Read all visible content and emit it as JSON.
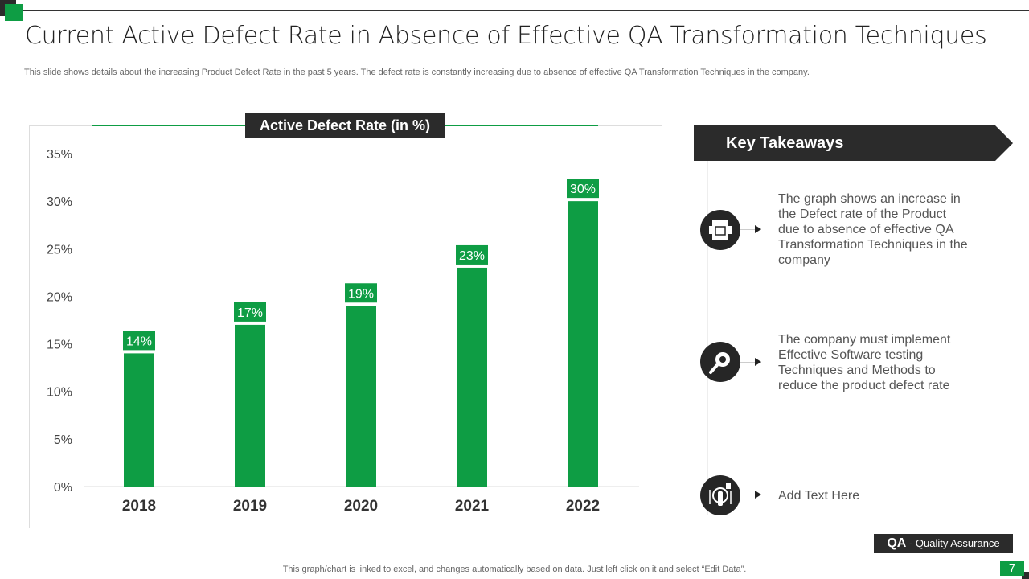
{
  "header": {
    "title": "Current Active Defect Rate in Absence of Effective QA Transformation Techniques",
    "subtitle": "This slide shows details about the increasing Product Defect Rate in the past 5 years. The defect rate is constantly increasing due to absence of effective QA Transformation Techniques in the company."
  },
  "colors": {
    "accent": "#0e9d44",
    "dark": "#2b2b2b"
  },
  "chart_data": {
    "type": "bar",
    "title": "Active Defect Rate (in %)",
    "categories": [
      "2018",
      "2019",
      "2020",
      "2021",
      "2022"
    ],
    "values": [
      14,
      17,
      19,
      23,
      30
    ],
    "data_labels": [
      "14%",
      "17%",
      "19%",
      "23%",
      "30%"
    ],
    "ylim": [
      0,
      35
    ],
    "yticks": [
      "0%",
      "5%",
      "10%",
      "15%",
      "20%",
      "25%",
      "30%",
      "35%"
    ],
    "grid": false,
    "legend": "none"
  },
  "takeaways": {
    "title": "Key Takeaways",
    "items": [
      {
        "icon": "website-window-icon",
        "text": "The graph shows an increase in the Defect rate of the Product due to absence of effective QA Transformation Techniques in the company"
      },
      {
        "icon": "bug-search-icon",
        "text": "The company must implement Effective Software testing Techniques and Methods to reduce the product defect rate"
      },
      {
        "icon": "touch-control-icon",
        "text": "Add Text Here"
      }
    ]
  },
  "footer": {
    "abbr": "QA",
    "abbr_full": " - Quality Assurance",
    "note": "This graph/chart is linked to excel, and changes automatically based on data. Just left click on it and select “Edit Data”.",
    "page": "7"
  }
}
